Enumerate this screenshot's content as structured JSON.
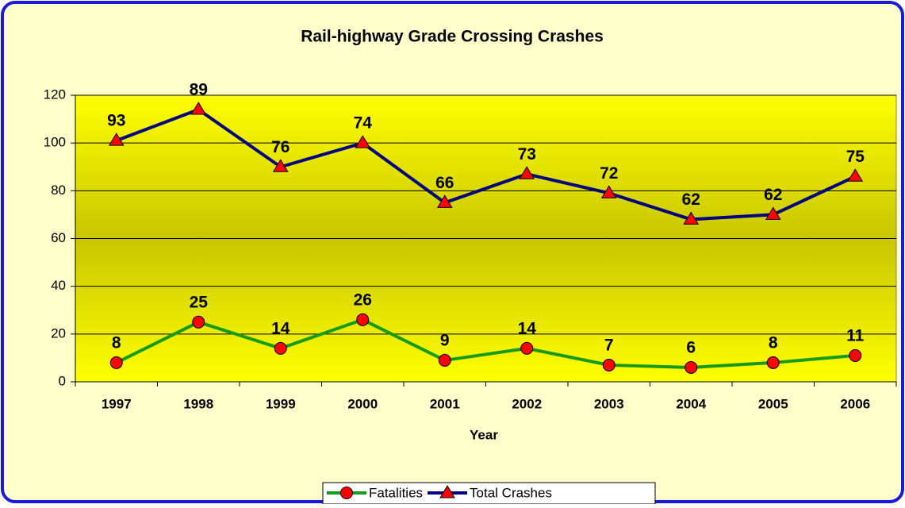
{
  "chart_data": {
    "type": "line",
    "stacked": true,
    "title": "Rail-highway Grade Crossing Crashes",
    "x_label": "Year",
    "categories": [
      "1997",
      "1998",
      "1999",
      "2000",
      "2001",
      "2002",
      "2003",
      "2004",
      "2005",
      "2006"
    ],
    "series": [
      {
        "name": "Fatalities",
        "color": "#169c16",
        "marker": "circle",
        "marker_color": "#ff0000",
        "values": [
          8,
          25,
          14,
          26,
          9,
          14,
          7,
          6,
          8,
          11
        ]
      },
      {
        "name": "Total Crashes",
        "color": "#000080",
        "marker": "triangle",
        "marker_color": "#ff0000",
        "values": [
          93,
          89,
          76,
          74,
          66,
          73,
          72,
          62,
          62,
          75
        ]
      }
    ],
    "ylim": [
      0,
      120
    ],
    "yticks": [
      0,
      20,
      40,
      60,
      80,
      100,
      120
    ],
    "grid": true,
    "legend": "bottom"
  }
}
